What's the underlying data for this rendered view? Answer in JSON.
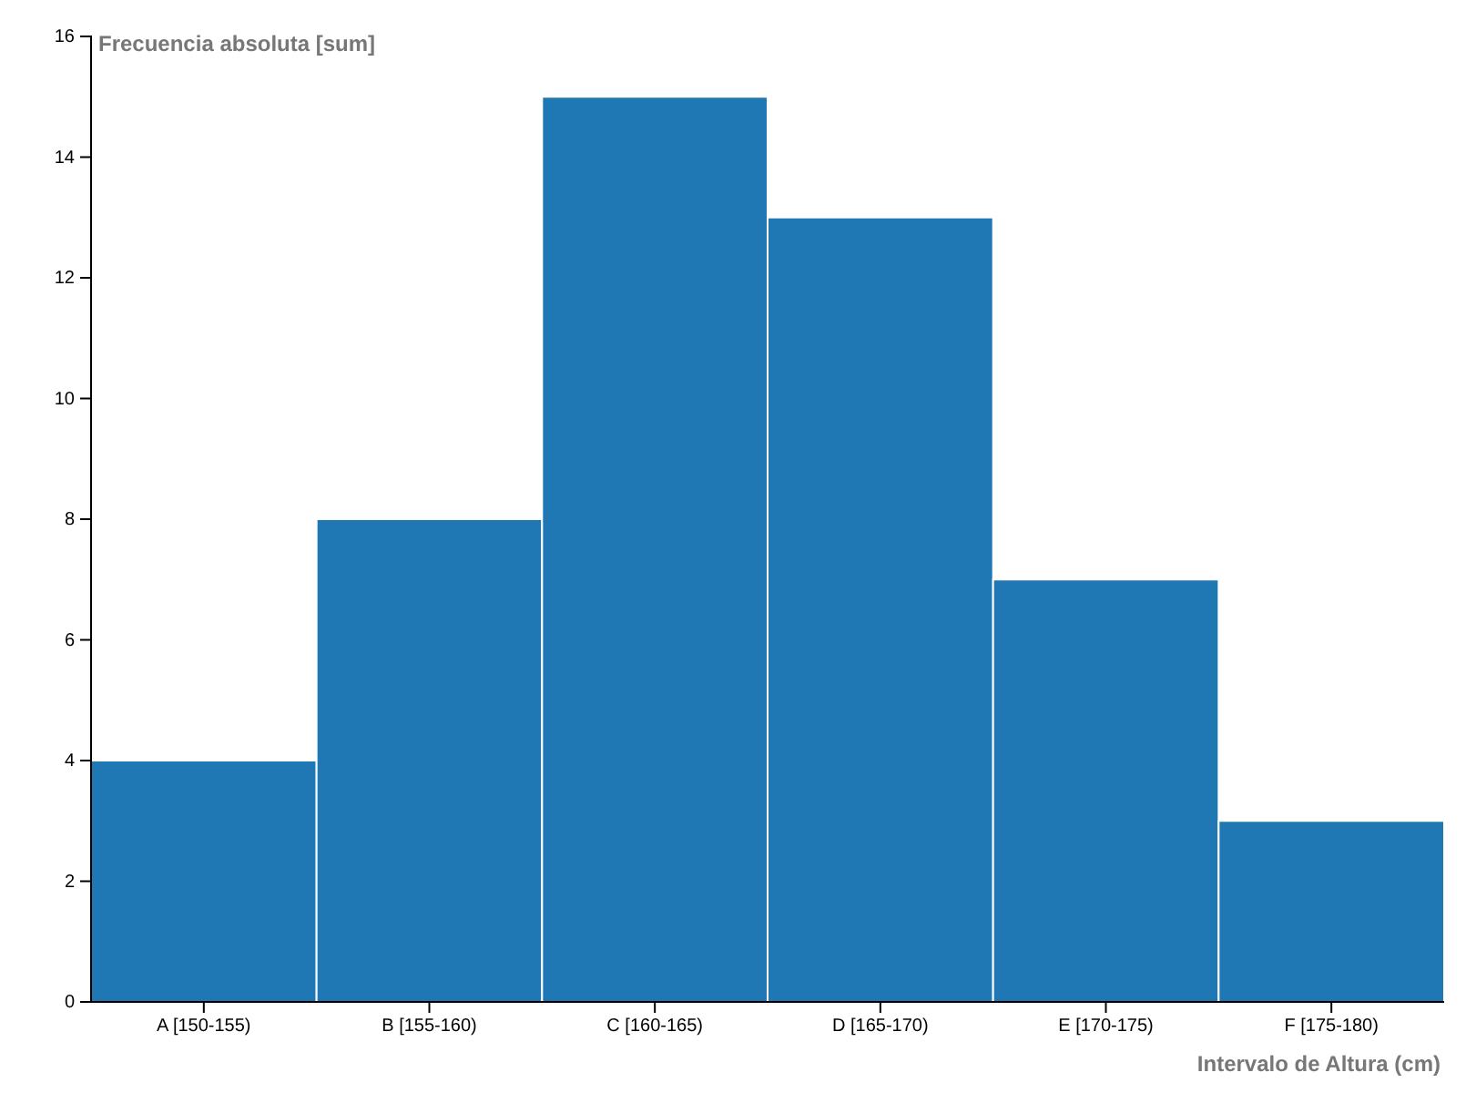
{
  "chart_data": {
    "type": "bar",
    "xlabel": "Intervalo de Altura (cm)",
    "ylabel": "Frecuencia absoluta [sum]",
    "categories": [
      "A [150-155)",
      "B [155-160)",
      "C [160-165)",
      "D [165-170)",
      "E [170-175)",
      "F [175-180)"
    ],
    "values": [
      4,
      8,
      15,
      13,
      7,
      3
    ],
    "color": "#1f77b4",
    "ylim": [
      0,
      16
    ],
    "yticks": [
      0,
      2,
      4,
      6,
      8,
      10,
      12,
      14,
      16
    ],
    "grid": false
  }
}
